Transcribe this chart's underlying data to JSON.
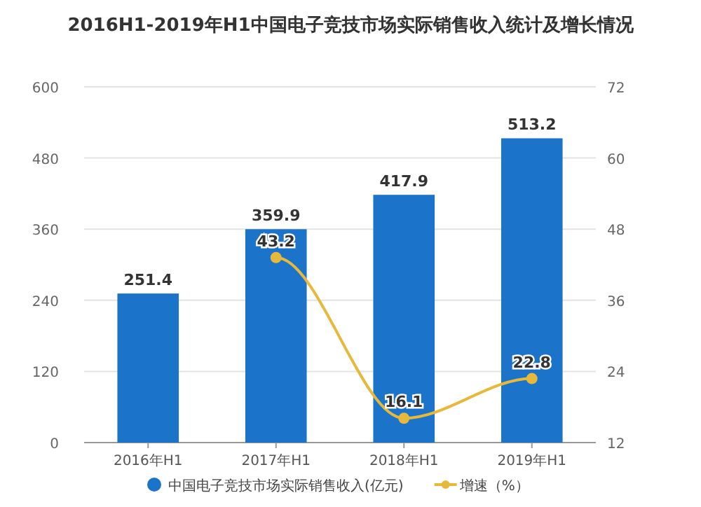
{
  "chart_data": {
    "type": "bar",
    "title": "2016H1-2019年H1中国电子竞技市场实际销售收入统计及增长情况",
    "categories": [
      "2016年H1",
      "2017年H1",
      "2018年H1",
      "2019年H1"
    ],
    "series": [
      {
        "name": "中国电子竞技市场实际销售收入(亿元)",
        "color": "#1b74c9",
        "values": [
          251.4,
          359.9,
          417.9,
          513.2
        ]
      },
      {
        "name": "增速（%）",
        "type": "line",
        "axis": "y2",
        "color": "#e6b93c",
        "values": [
          null,
          43.2,
          16.1,
          22.8
        ]
      }
    ],
    "ylim": [
      0,
      600
    ],
    "yticks": [
      0,
      120,
      240,
      360,
      480,
      600
    ],
    "y2lim": [
      12,
      72
    ],
    "y2ticks": [
      12,
      24,
      36,
      48,
      60,
      72
    ],
    "data_labels": true,
    "grid": "y",
    "legend": "bottom",
    "marker": "circle"
  }
}
